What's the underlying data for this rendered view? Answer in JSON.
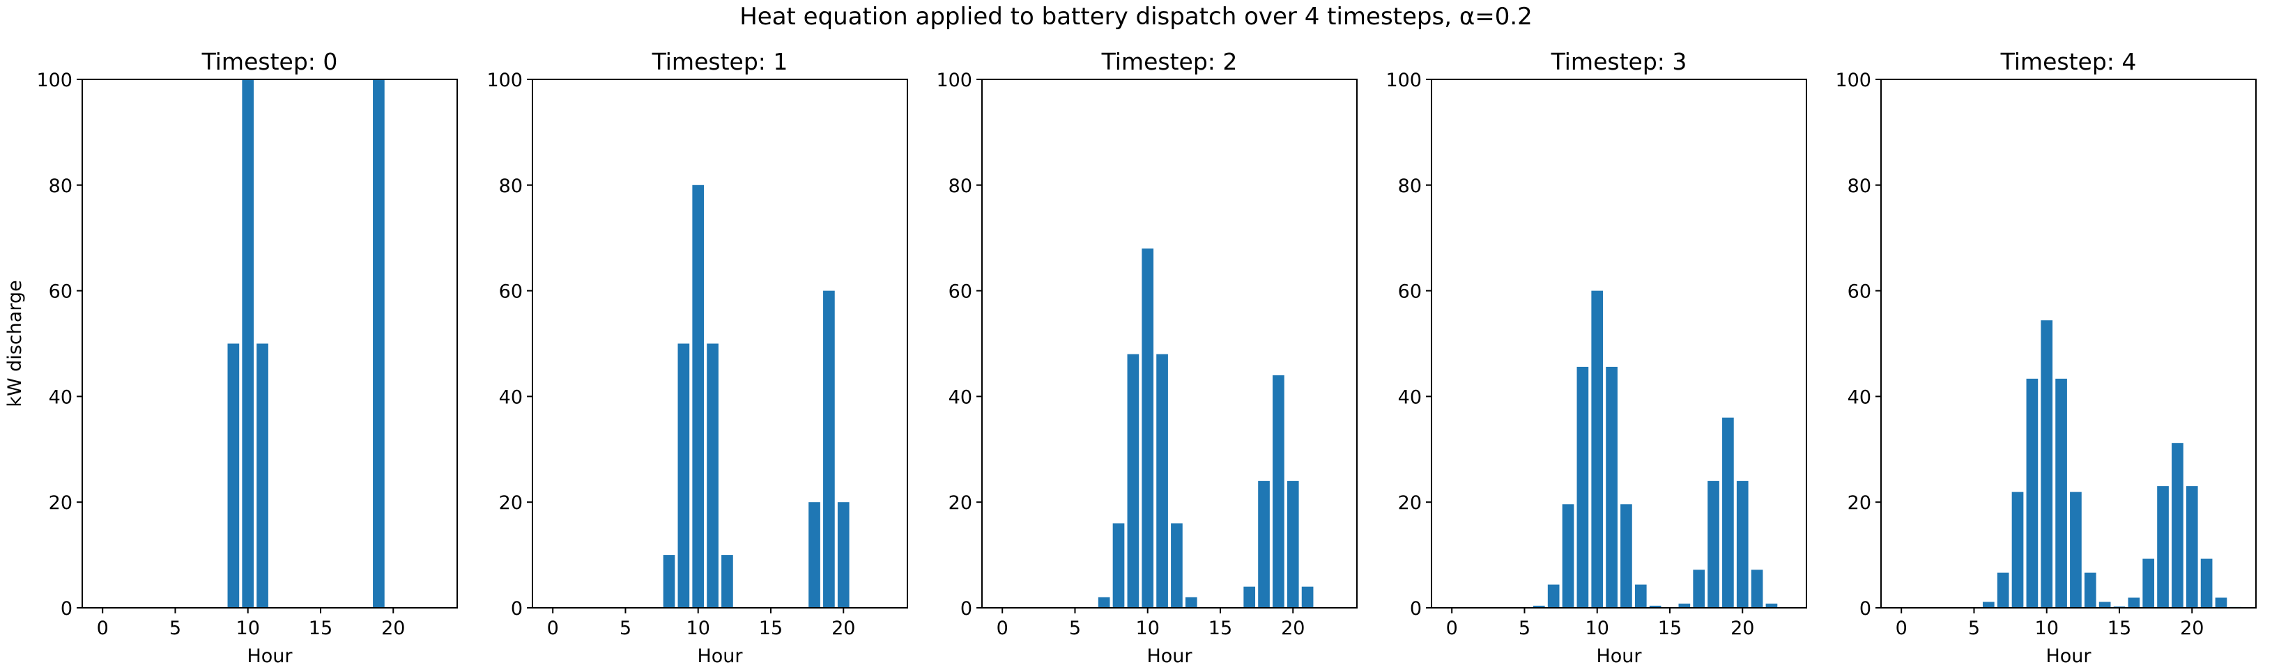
{
  "figure": {
    "suptitle": "Heat equation applied to battery dispatch over 4 timesteps, α=0.2",
    "bar_color": "#1f77b4"
  },
  "chart_data": [
    {
      "type": "bar",
      "title": "Timestep: 0",
      "xlabel": "Hour",
      "ylabel": "kW discharge",
      "x": [
        0,
        1,
        2,
        3,
        4,
        5,
        6,
        7,
        8,
        9,
        10,
        11,
        12,
        13,
        14,
        15,
        16,
        17,
        18,
        19,
        20,
        21,
        22,
        23
      ],
      "values": [
        0,
        0,
        0,
        0,
        0,
        0,
        0,
        0,
        0,
        50,
        100,
        50,
        0,
        0,
        0,
        0,
        0,
        0,
        0,
        100,
        0,
        0,
        0,
        0
      ],
      "xlim": [
        -1.4,
        24.4
      ],
      "ylim": [
        0,
        100
      ],
      "xticks": [
        0,
        5,
        10,
        15,
        20
      ],
      "yticks": [
        0,
        20,
        40,
        60,
        80,
        100
      ],
      "grid": false
    },
    {
      "type": "bar",
      "title": "Timestep: 1",
      "xlabel": "Hour",
      "ylabel": "",
      "x": [
        0,
        1,
        2,
        3,
        4,
        5,
        6,
        7,
        8,
        9,
        10,
        11,
        12,
        13,
        14,
        15,
        16,
        17,
        18,
        19,
        20,
        21,
        22,
        23
      ],
      "values": [
        0,
        0,
        0,
        0,
        0,
        0,
        0,
        0,
        10,
        50,
        80,
        50,
        10,
        0,
        0,
        0,
        0,
        0,
        20,
        60,
        20,
        0,
        0,
        0
      ],
      "xlim": [
        -1.4,
        24.4
      ],
      "ylim": [
        0,
        100
      ],
      "xticks": [
        0,
        5,
        10,
        15,
        20
      ],
      "yticks": [
        0,
        20,
        40,
        60,
        80,
        100
      ],
      "grid": false
    },
    {
      "type": "bar",
      "title": "Timestep: 2",
      "xlabel": "Hour",
      "ylabel": "",
      "x": [
        0,
        1,
        2,
        3,
        4,
        5,
        6,
        7,
        8,
        9,
        10,
        11,
        12,
        13,
        14,
        15,
        16,
        17,
        18,
        19,
        20,
        21,
        22,
        23
      ],
      "values": [
        0,
        0,
        0,
        0,
        0,
        0,
        0,
        2,
        16,
        48,
        68,
        48,
        16,
        2,
        0,
        0,
        0,
        4,
        24,
        44,
        24,
        4,
        0,
        0
      ],
      "xlim": [
        -1.4,
        24.4
      ],
      "ylim": [
        0,
        100
      ],
      "xticks": [
        0,
        5,
        10,
        15,
        20
      ],
      "yticks": [
        0,
        20,
        40,
        60,
        80,
        100
      ],
      "grid": false
    },
    {
      "type": "bar",
      "title": "Timestep: 3",
      "xlabel": "Hour",
      "ylabel": "",
      "x": [
        0,
        1,
        2,
        3,
        4,
        5,
        6,
        7,
        8,
        9,
        10,
        11,
        12,
        13,
        14,
        15,
        16,
        17,
        18,
        19,
        20,
        21,
        22,
        23
      ],
      "values": [
        0,
        0,
        0,
        0,
        0,
        0,
        0.4,
        4.4,
        19.6,
        45.6,
        60,
        45.6,
        19.6,
        4.4,
        0.4,
        0,
        0.8,
        7.2,
        24,
        36,
        24,
        7.2,
        0.8,
        0
      ],
      "xlim": [
        -1.4,
        24.4
      ],
      "ylim": [
        0,
        100
      ],
      "xticks": [
        0,
        5,
        10,
        15,
        20
      ],
      "yticks": [
        0,
        20,
        40,
        60,
        80,
        100
      ],
      "grid": false
    },
    {
      "type": "bar",
      "title": "Timestep: 4",
      "xlabel": "Hour",
      "ylabel": "",
      "x": [
        0,
        1,
        2,
        3,
        4,
        5,
        6,
        7,
        8,
        9,
        10,
        11,
        12,
        13,
        14,
        15,
        16,
        17,
        18,
        19,
        20,
        21,
        22,
        23
      ],
      "values": [
        0,
        0,
        0,
        0,
        0,
        0.08,
        1.12,
        6.64,
        21.92,
        43.36,
        54.4,
        43.36,
        21.92,
        6.64,
        1.12,
        0.24,
        1.92,
        9.28,
        23.04,
        31.2,
        23.04,
        9.28,
        1.92,
        0.16
      ],
      "xlim": [
        -1.4,
        24.4
      ],
      "ylim": [
        0,
        100
      ],
      "xticks": [
        0,
        5,
        10,
        15,
        20
      ],
      "yticks": [
        0,
        20,
        40,
        60,
        80,
        100
      ],
      "grid": false
    }
  ]
}
